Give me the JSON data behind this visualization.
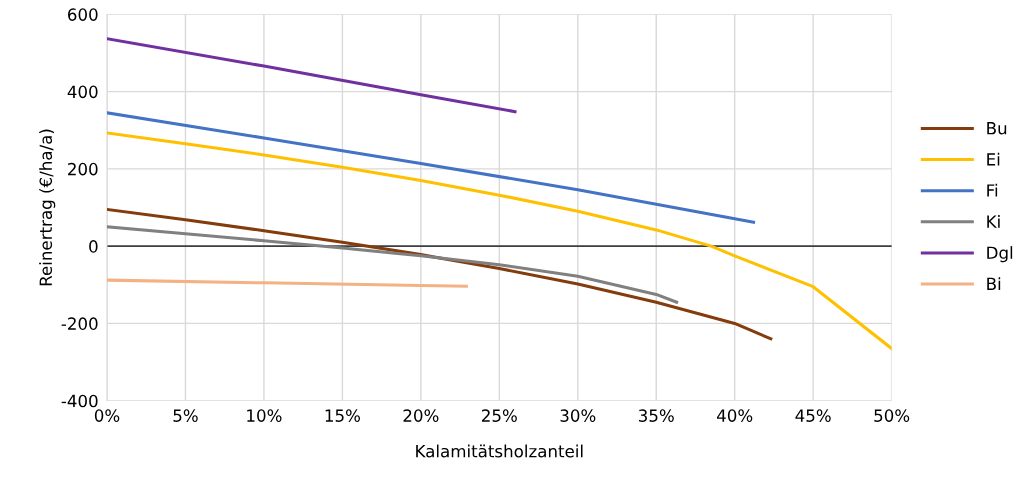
{
  "chart_data": {
    "type": "line",
    "xlabel": "Kalamitätsholzanteil",
    "ylabel": "Reinertrag (€/ha/a)",
    "xlim": [
      0,
      50
    ],
    "ylim": [
      -400,
      600
    ],
    "xticks": [
      {
        "value": 0,
        "label": "0%"
      },
      {
        "value": 5,
        "label": "5%"
      },
      {
        "value": 10,
        "label": "10%"
      },
      {
        "value": 15,
        "label": "15%"
      },
      {
        "value": 20,
        "label": "20%"
      },
      {
        "value": 25,
        "label": "25%"
      },
      {
        "value": 30,
        "label": "30%"
      },
      {
        "value": 35,
        "label": "35%"
      },
      {
        "value": 40,
        "label": "40%"
      },
      {
        "value": 45,
        "label": "45%"
      },
      {
        "value": 50,
        "label": "50%"
      }
    ],
    "yticks": [
      -400,
      -200,
      0,
      200,
      400,
      600
    ],
    "grid": true,
    "legend": "right",
    "marker": "none",
    "line_style": "solid",
    "ref_lines": [
      {
        "axis": "y",
        "value": 0,
        "label": null,
        "color": "#404040"
      }
    ],
    "series": [
      {
        "name": "Bu",
        "color": "#843c0c",
        "x": [
          0,
          5,
          10,
          15,
          20,
          25,
          30,
          35,
          40,
          42.3
        ],
        "values": [
          95,
          68,
          40,
          10,
          -22,
          -58,
          -98,
          -145,
          -200,
          -240
        ]
      },
      {
        "name": "Ei",
        "color": "#ffc000",
        "x": [
          0,
          5,
          10,
          15,
          20,
          25,
          30,
          35,
          38.5,
          40,
          45,
          50
        ],
        "values": [
          293,
          265,
          236,
          204,
          170,
          132,
          90,
          42,
          0,
          -25,
          -105,
          -265
        ]
      },
      {
        "name": "Fi",
        "color": "#4472c4",
        "x": [
          0,
          10,
          20,
          30,
          41.2
        ],
        "values": [
          345,
          280,
          214,
          146,
          62
        ]
      },
      {
        "name": "Ki",
        "color": "#808080",
        "x": [
          0,
          5,
          10,
          15,
          20,
          25,
          30,
          35,
          36.3
        ],
        "values": [
          50,
          32,
          14,
          -5,
          -25,
          -48,
          -78,
          -125,
          -145
        ]
      },
      {
        "name": "Dgl",
        "color": "#7030a0",
        "x": [
          0,
          10,
          20,
          26
        ],
        "values": [
          537,
          466,
          392,
          348
        ]
      },
      {
        "name": "Bi",
        "color": "#f4b183",
        "x": [
          0,
          10,
          20,
          22.9
        ],
        "values": [
          -88,
          -95,
          -102,
          -104
        ]
      }
    ]
  }
}
